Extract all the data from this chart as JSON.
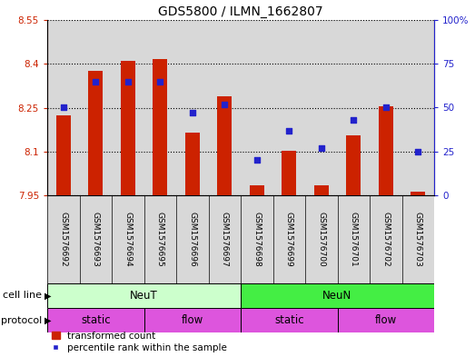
{
  "title": "GDS5800 / ILMN_1662807",
  "samples": [
    "GSM1576692",
    "GSM1576693",
    "GSM1576694",
    "GSM1576695",
    "GSM1576696",
    "GSM1576697",
    "GSM1576698",
    "GSM1576699",
    "GSM1576700",
    "GSM1576701",
    "GSM1576702",
    "GSM1576703"
  ],
  "red_values": [
    8.225,
    8.375,
    8.41,
    8.415,
    8.165,
    8.29,
    7.985,
    8.103,
    7.985,
    8.155,
    8.255,
    7.963
  ],
  "blue_values": [
    50,
    65,
    65,
    65,
    47,
    52,
    20,
    37,
    27,
    43,
    50,
    25
  ],
  "ymin": 7.95,
  "ymax": 8.55,
  "y2min": 0,
  "y2max": 100,
  "yticks": [
    7.95,
    8.1,
    8.25,
    8.4,
    8.55
  ],
  "ytick_labels": [
    "7.95",
    "8.1",
    "8.25",
    "8.4",
    "8.55"
  ],
  "y2ticks": [
    0,
    25,
    50,
    75,
    100
  ],
  "y2tick_labels": [
    "0",
    "25",
    "50",
    "75",
    "100%"
  ],
  "bar_color": "#cc2200",
  "dot_color": "#2222cc",
  "baseline": 7.95,
  "cell_line_groups": [
    {
      "label": "NeuT",
      "start": 0,
      "end": 6,
      "color": "#ccffcc"
    },
    {
      "label": "NeuN",
      "start": 6,
      "end": 12,
      "color": "#44ee44"
    }
  ],
  "protocol_groups": [
    {
      "label": "static",
      "start": 0,
      "end": 3
    },
    {
      "label": "flow",
      "start": 3,
      "end": 6
    },
    {
      "label": "static",
      "start": 6,
      "end": 9
    },
    {
      "label": "flow",
      "start": 9,
      "end": 12
    }
  ],
  "protocol_color": "#dd55dd",
  "background_color": "#ffffff",
  "plot_bg": "#d8d8d8",
  "title_fontsize": 10,
  "tick_fontsize": 7.5,
  "label_fontsize": 8
}
